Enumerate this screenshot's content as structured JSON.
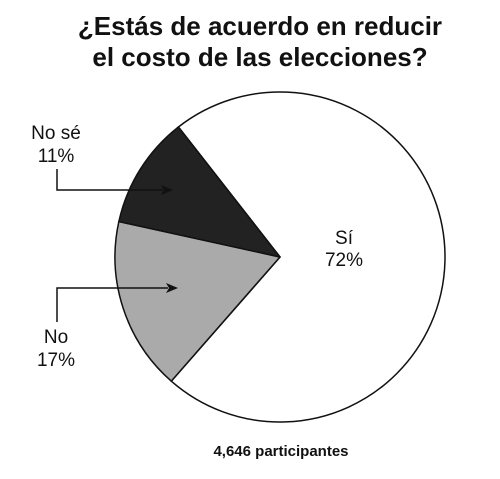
{
  "chart_data": {
    "type": "pie",
    "title": "¿Estás de acuerdo en reducir el costo de las elecciones?",
    "title_lines": [
      "¿Estás de acuerdo en reducir",
      "el costo de las elecciones?"
    ],
    "slices": [
      {
        "name": "Sí",
        "value": 72,
        "value_label": "72%",
        "color": "#ffffff"
      },
      {
        "name": "No",
        "value": 17,
        "value_label": "17%",
        "color": "#aaaaaa"
      },
      {
        "name": "No sé",
        "value": 11,
        "value_label": "11%",
        "color": "#222222"
      }
    ],
    "footer": "4,646 participantes",
    "outline_color": "#111111"
  }
}
